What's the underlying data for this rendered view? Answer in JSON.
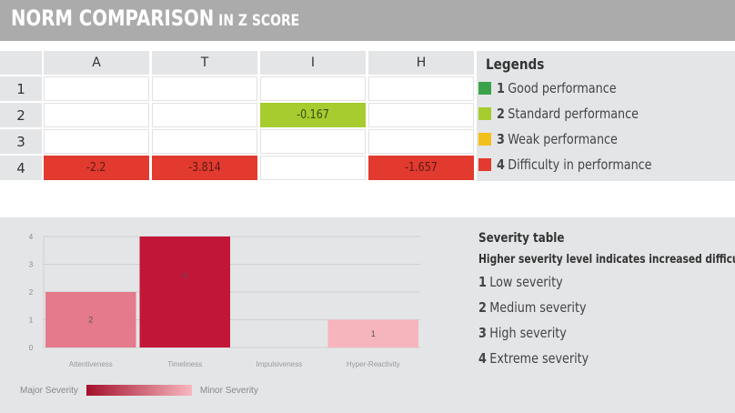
{
  "header": {
    "title": "NORM COMPARISON",
    "subtitle": "IN Z SCORE"
  },
  "norm_table": {
    "columns": [
      "A",
      "T",
      "I",
      "H"
    ],
    "rows": [
      {
        "label": "1",
        "cells": [
          "",
          "",
          "",
          ""
        ]
      },
      {
        "label": "2",
        "cells": [
          "",
          "",
          "-0.167",
          ""
        ]
      },
      {
        "label": "3",
        "cells": [
          "",
          "",
          "",
          ""
        ]
      },
      {
        "label": "4",
        "cells": [
          "-2.2",
          "-3.814",
          "",
          "-1.657"
        ]
      }
    ],
    "colors": {
      "good": "#3aa34a",
      "standard": "#a6cc2f",
      "weak": "#f2c01a",
      "difficulty": "#e23a2f"
    }
  },
  "legend": {
    "title": "Legends",
    "items": [
      {
        "num": "1",
        "text": "Good performance",
        "color": "#3aa34a"
      },
      {
        "num": "2",
        "text": "Standard performance",
        "color": "#a6cc2f"
      },
      {
        "num": "3",
        "text": "Weak performance",
        "color": "#f2c01a"
      },
      {
        "num": "4",
        "text": "Difficulty in performance",
        "color": "#e23a2f"
      }
    ]
  },
  "severity_table": {
    "title": "Severity table",
    "subtitle": "Higher severity level indicates increased difficulty",
    "items": [
      {
        "num": "1",
        "text": "Low severity"
      },
      {
        "num": "2",
        "text": "Medium severity"
      },
      {
        "num": "3",
        "text": "High severity"
      },
      {
        "num": "4",
        "text": "Extreme severity"
      }
    ]
  },
  "severity_scale": {
    "left_label": "Major Severity",
    "right_label": "Minor Severity",
    "colors": [
      "#a4102c",
      "#f7b7bf"
    ]
  },
  "chart_data": {
    "type": "bar",
    "categories": [
      "Attentiveness",
      "Timeliness",
      "Impulsiveness",
      "Hyper-Reactivity"
    ],
    "values": [
      2,
      4,
      0,
      1
    ],
    "data_labels": [
      "2",
      "4",
      "",
      "1"
    ],
    "bar_colors": [
      "#e47a8c",
      "#c21638",
      "#ffffff",
      "#f6b5bd"
    ],
    "yticks": [
      "0",
      "1",
      "2",
      "3",
      "4"
    ],
    "ylim": [
      0,
      4
    ],
    "grid": true,
    "title": "",
    "xlabel": "",
    "ylabel": ""
  }
}
